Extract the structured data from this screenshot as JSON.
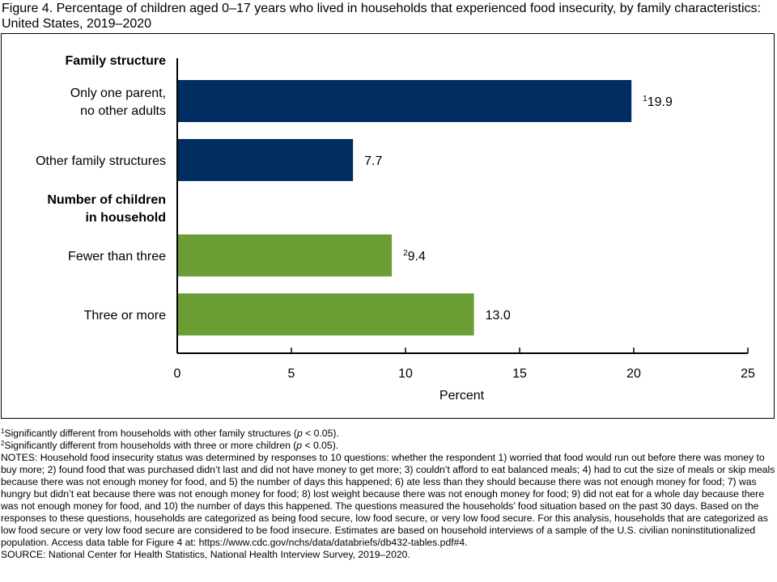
{
  "title": "Figure 4. Percentage of children aged 0–17 years who lived in households that experienced food insecurity, by family characteristics: United States, 2019–2020",
  "colors": {
    "family": "#002d62",
    "children": "#6b9e34",
    "axis": "#000000"
  },
  "chart_data": {
    "type": "bar",
    "orientation": "horizontal",
    "xlabel": "Percent",
    "xlim": [
      0,
      25
    ],
    "xticks": [
      0,
      5,
      10,
      15,
      20,
      25
    ],
    "groups": [
      {
        "heading": "Family structure",
        "heading_lines": [
          "Family structure"
        ],
        "color": "#002d62",
        "bars": [
          {
            "label_lines": [
              "Only one parent,",
              "no other adults"
            ],
            "value": 19.9,
            "value_label": "19.9",
            "sup": "1"
          },
          {
            "label_lines": [
              "Other family structures"
            ],
            "value": 7.7,
            "value_label": "7.7",
            "sup": ""
          }
        ]
      },
      {
        "heading": "Number of children in household",
        "heading_lines": [
          "Number of children",
          "in household"
        ],
        "color": "#6b9e34",
        "bars": [
          {
            "label_lines": [
              "Fewer than three"
            ],
            "value": 9.4,
            "value_label": "9.4",
            "sup": "2"
          },
          {
            "label_lines": [
              "Three or more"
            ],
            "value": 13.0,
            "value_label": "13.0",
            "sup": ""
          }
        ]
      }
    ]
  },
  "footnotes": {
    "fn1": {
      "sup": "1",
      "before": "Significantly different from households with other family structures (",
      "italic": "p",
      "after": " < 0.05)."
    },
    "fn2": {
      "sup": "2",
      "before": "Significantly different from households with three or more children (",
      "italic": "p",
      "after": " < 0.05)."
    },
    "notes": "NOTES: Household food insecurity status was determined by responses to 10 questions: whether the respondent 1) worried that food would run out before there was money to buy more; 2) found food that was purchased didn’t last and did not have money to get more; 3) couldn’t afford to eat balanced meals; 4) had to cut the size of meals or skip meals because there was not enough money for food, and 5) the number of days this happened; 6) ate less than they should because there was not enough money for food; 7) was hungry but didn’t eat because there was not enough money for food; 8) lost weight because there was not enough money for food; 9) did not eat for a whole day because there was not enough money for food, and 10) the number of days this happened. The questions measured the households’ food situation based on the past 30 days. Based on the responses to these questions, households are categorized as being food secure, low food secure, or very low food secure. For this analysis, households that are categorized as low food secure or very low food secure are considered to be food insecure. Estimates are based on household interviews of a sample of the U.S. civilian noninstitutionalized population. Access data table for Figure 4 at: https://www.cdc.gov/nchs/data/databriefs/db432-tables.pdf#4.",
    "source": "SOURCE: National Center for Health Statistics, National Health Interview Survey, 2019–2020."
  }
}
